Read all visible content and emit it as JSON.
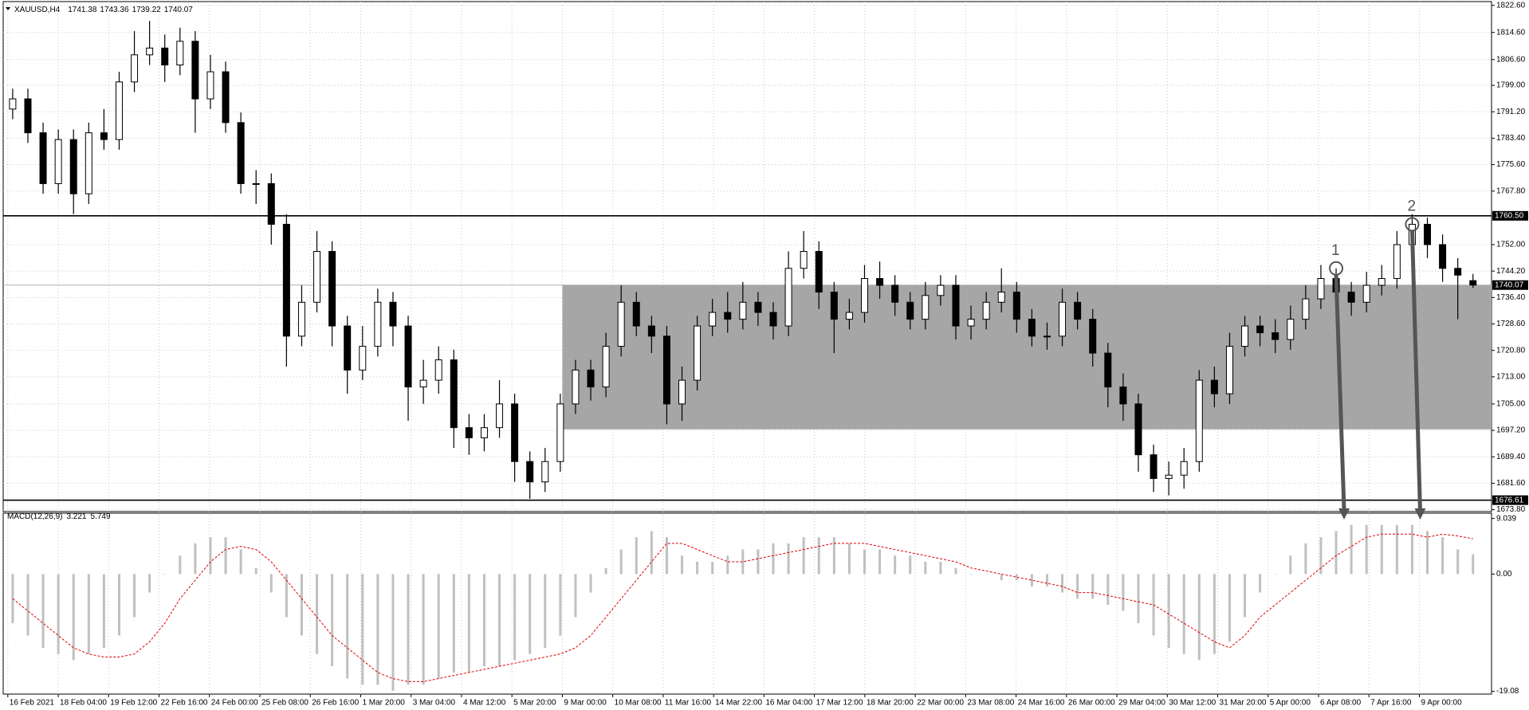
{
  "chart_data": {
    "type": "candlestick",
    "symbol": "XAUUSD,H4",
    "open": [
      1792,
      1795,
      1785,
      1770,
      1783,
      1767,
      1785,
      1783,
      1800,
      1808,
      1810,
      1805,
      1812,
      1795,
      1803,
      1788,
      1770,
      1770,
      1758,
      1725,
      1735,
      1750,
      1728,
      1715,
      1722,
      1735,
      1728,
      1710,
      1712,
      1718,
      1698,
      1695,
      1698,
      1705,
      1688,
      1682,
      1688,
      1705,
      1715,
      1710,
      1722,
      1735,
      1728,
      1725,
      1705,
      1712,
      1728,
      1732,
      1730,
      1735,
      1732,
      1728,
      1745,
      1750,
      1738,
      1730,
      1732,
      1742,
      1740,
      1735,
      1730,
      1737,
      1740,
      1728,
      1730,
      1735,
      1738,
      1730,
      1725,
      1725,
      1735,
      1730,
      1720,
      1710,
      1705,
      1690,
      1683,
      1684,
      1688,
      1712,
      1708,
      1722,
      1728,
      1726,
      1724,
      1730,
      1736,
      1742,
      1738,
      1735,
      1740,
      1742,
      1752,
      1758,
      1752,
      1745,
      1741.38
    ],
    "high": [
      1798,
      1798,
      1788,
      1786,
      1786,
      1788,
      1792,
      1803,
      1815,
      1818,
      1814,
      1816,
      1815,
      1808,
      1806,
      1791,
      1774,
      1773,
      1761,
      1740,
      1756,
      1753,
      1731,
      1728,
      1739,
      1738,
      1731,
      1718,
      1722,
      1721,
      1702,
      1702,
      1712,
      1708,
      1691,
      1692,
      1708,
      1718,
      1718,
      1726,
      1740,
      1738,
      1731,
      1728,
      1716,
      1731,
      1736,
      1738,
      1741,
      1738,
      1735,
      1750,
      1756,
      1753,
      1741,
      1736,
      1746,
      1747,
      1743,
      1738,
      1741,
      1743,
      1743,
      1734,
      1738,
      1745,
      1741,
      1733,
      1729,
      1739,
      1738,
      1733,
      1723,
      1714,
      1708,
      1693,
      1688,
      1692,
      1715,
      1716,
      1726,
      1731,
      1731,
      1730,
      1734,
      1740,
      1746,
      1745,
      1741,
      1744,
      1746,
      1756,
      1761,
      1760,
      1755,
      1748,
      1743.36
    ],
    "low": [
      1789,
      1782,
      1767,
      1767,
      1761,
      1764,
      1780,
      1780,
      1797,
      1805,
      1800,
      1802,
      1785,
      1792,
      1785,
      1767,
      1764,
      1752,
      1716,
      1722,
      1732,
      1722,
      1708,
      1712,
      1719,
      1722,
      1700,
      1705,
      1708,
      1692,
      1690,
      1691,
      1695,
      1682,
      1677,
      1679,
      1685,
      1702,
      1706,
      1707,
      1719,
      1725,
      1720,
      1699,
      1700,
      1709,
      1725,
      1726,
      1727,
      1728,
      1724,
      1725,
      1742,
      1733,
      1720,
      1727,
      1729,
      1736,
      1731,
      1727,
      1727,
      1734,
      1724,
      1724,
      1727,
      1732,
      1726,
      1722,
      1721,
      1722,
      1727,
      1716,
      1704,
      1700,
      1685,
      1679,
      1678,
      1680,
      1685,
      1704,
      1705,
      1719,
      1722,
      1720,
      1721,
      1727,
      1733,
      1734,
      1731,
      1732,
      1737,
      1739,
      1749,
      1748,
      1741,
      1730,
      1739.22
    ],
    "close": [
      1795,
      1785,
      1770,
      1783,
      1767,
      1785,
      1783,
      1800,
      1808,
      1810,
      1805,
      1812,
      1795,
      1803,
      1788,
      1770,
      1770,
      1758,
      1725,
      1735,
      1750,
      1728,
      1715,
      1722,
      1735,
      1728,
      1710,
      1712,
      1718,
      1698,
      1695,
      1698,
      1705,
      1688,
      1682,
      1688,
      1705,
      1715,
      1710,
      1722,
      1735,
      1728,
      1725,
      1705,
      1712,
      1728,
      1732,
      1730,
      1735,
      1732,
      1728,
      1745,
      1750,
      1738,
      1730,
      1732,
      1742,
      1740,
      1735,
      1730,
      1737,
      1740,
      1728,
      1730,
      1735,
      1738,
      1730,
      1725,
      1725,
      1735,
      1730,
      1720,
      1710,
      1705,
      1690,
      1683,
      1684,
      1688,
      1712,
      1708,
      1722,
      1728,
      1726,
      1724,
      1730,
      1736,
      1742,
      1738,
      1735,
      1740,
      1742,
      1752,
      1758,
      1752,
      1745,
      1743,
      1740.07
    ],
    "ylim": [
      1673.8,
      1822.6
    ],
    "yticks": [
      {
        "value": 1822.6,
        "label": "1822.60"
      },
      {
        "value": 1814.6,
        "label": "1814.60"
      },
      {
        "value": 1806.6,
        "label": "1806.60"
      },
      {
        "value": 1799,
        "label": "1799.00"
      },
      {
        "value": 1791.2,
        "label": "1791.20"
      },
      {
        "value": 1783.4,
        "label": "1783.40"
      },
      {
        "value": 1775.6,
        "label": "1775.60"
      },
      {
        "value": 1767.8,
        "label": "1767.80"
      },
      {
        "value": 1752,
        "label": "1752.00"
      },
      {
        "value": 1744.2,
        "label": "1744.20"
      },
      {
        "value": 1736.4,
        "label": "1736.40"
      },
      {
        "value": 1728.6,
        "label": "1728.60"
      },
      {
        "value": 1720.8,
        "label": "1720.80"
      },
      {
        "value": 1713,
        "label": "1713.00"
      },
      {
        "value": 1705,
        "label": "1705.00"
      },
      {
        "value": 1697.2,
        "label": "1697.20"
      },
      {
        "value": 1689.4,
        "label": "1689.40"
      },
      {
        "value": 1681.6,
        "label": "1681.60"
      },
      {
        "value": 1673.8,
        "label": "1673.80"
      }
    ],
    "grid": true,
    "levels": [
      {
        "value": 1760.5,
        "label": "1760.50"
      },
      {
        "value": 1676.61,
        "label": "1676.61"
      }
    ],
    "zone": {
      "from": "9 Mar 00:00",
      "top": 1740,
      "bottom": 1697.5,
      "color": "#a6a6a6"
    },
    "annotations": [
      {
        "text": "1",
        "price": 1745,
        "candle": 87
      },
      {
        "text": "2",
        "price": 1758,
        "candle": 92
      }
    ],
    "time_labels": [
      "16 Feb 2021",
      "18 Feb 04:00",
      "19 Feb 12:00",
      "22 Feb 16:00",
      "24 Feb 00:00",
      "25 Feb 08:00",
      "26 Feb 16:00",
      "1 Mar 20:00",
      "3 Mar 04:00",
      "4 Mar 12:00",
      "5 Mar 20:00",
      "9 Mar 00:00",
      "10 Mar 08:00",
      "11 Mar 16:00",
      "14 Mar 22:00",
      "16 Mar 04:00",
      "17 Mar 12:00",
      "18 Mar 20:00",
      "22 Mar 00:00",
      "23 Mar 08:00",
      "24 Mar 16:00",
      "26 Mar 00:00",
      "29 Mar 04:00",
      "30 Mar 12:00",
      "31 Mar 20:00",
      "5 Apr 00:00",
      "6 Apr 08:00",
      "7 Apr 16:00",
      "9 Apr 00:00"
    ],
    "macd": {
      "title": "MACD(12,26,9)",
      "histogram_color": "#c0c0c0",
      "signal_color": "#e00000",
      "histogram": [
        -8,
        -10,
        -12,
        -13,
        -14,
        -13,
        -12,
        -10,
        -7,
        -3,
        0,
        3,
        5,
        6,
        6,
        4,
        1,
        -3,
        -7,
        -10,
        -13,
        -15,
        -17,
        -18,
        -18,
        -19,
        -18,
        -18,
        -17,
        -16,
        -16,
        -15,
        -15,
        -14,
        -13,
        -12,
        -10,
        -7,
        -3,
        1,
        4,
        6,
        7,
        6,
        3,
        2,
        2,
        3,
        4,
        4,
        5,
        5,
        6,
        6,
        6,
        5,
        4,
        4,
        3,
        3,
        2,
        2,
        1,
        0,
        0,
        -1,
        -1,
        -2,
        -2,
        -3,
        -4,
        -4,
        -5,
        -6,
        -8,
        -10,
        -12,
        -13,
        -14,
        -13,
        -11,
        -7,
        -3,
        0,
        3,
        5,
        6,
        7,
        8,
        8,
        8,
        8,
        8,
        7,
        6,
        4,
        3.221
      ],
      "signal": [
        -4,
        -6,
        -8,
        -10,
        -12,
        -13,
        -13.5,
        -13.5,
        -13,
        -11,
        -8,
        -4,
        -1,
        2,
        4,
        4.5,
        4,
        2,
        -1,
        -4,
        -7,
        -10,
        -12,
        -14,
        -16,
        -17,
        -17.5,
        -17.5,
        -17,
        -16.5,
        -16,
        -15.5,
        -15,
        -14.5,
        -14,
        -13.5,
        -13,
        -12,
        -10,
        -7,
        -4,
        -1,
        2,
        5,
        5,
        4,
        3,
        2,
        2,
        2.5,
        3,
        3.5,
        4,
        4.5,
        5,
        5,
        5,
        4.5,
        4,
        3.5,
        3,
        2.5,
        2,
        1,
        0.5,
        0,
        -0.5,
        -1,
        -1.5,
        -2,
        -3,
        -3,
        -3.5,
        -4,
        -4.5,
        -5,
        -6.5,
        -8,
        -9.5,
        -11,
        -12,
        -10,
        -7,
        -5,
        -3,
        -1,
        1,
        3,
        4.5,
        6,
        6.5,
        6.5,
        6.5,
        6,
        6.5,
        6.2,
        5.749
      ],
      "ylim": [
        -19.08,
        9.039
      ],
      "yticks": [
        9.039,
        {
          "value": 0,
          "label": "0.00"
        },
        -19.08
      ]
    }
  }
}
